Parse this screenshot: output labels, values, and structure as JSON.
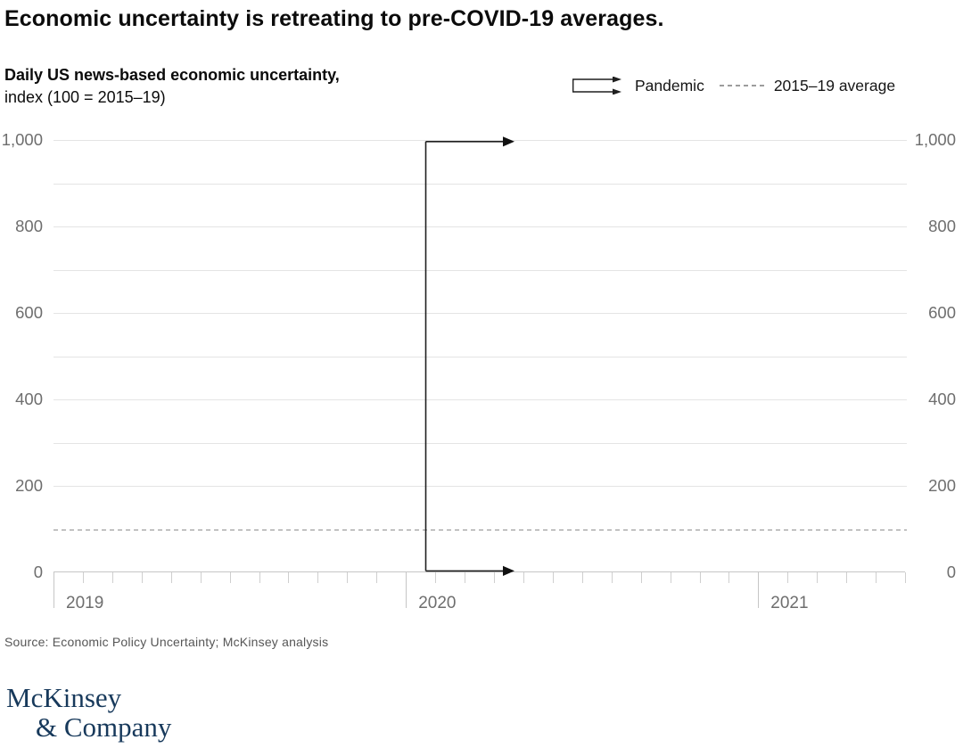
{
  "title": "Economic uncertainty is retreating to pre-COVID-19 averages.",
  "subtitle": {
    "bold": "Daily US news-based economic uncertainty,",
    "regular": " index (100 = 2015–19)"
  },
  "legend": {
    "pandemic_label": "Pandemic",
    "average_label": "2015–19 average"
  },
  "y_axis": {
    "tick_labels": [
      "1,000",
      "800",
      "600",
      "400",
      "200",
      "0"
    ],
    "tick_values": [
      1000,
      800,
      600,
      400,
      200,
      0
    ]
  },
  "x_axis": {
    "years": [
      "2019",
      "2020",
      "2021"
    ],
    "minor_tick_count": 30,
    "major_tick_every": 12
  },
  "source": "Source: Economic Policy Uncertainty; McKinsey analysis",
  "logo": {
    "line1": "McKinsey",
    "line2": "& Company"
  },
  "colors": {
    "text_dark": "#0b0b0b",
    "tick_label_gray": "#6e6e6e",
    "gridline_gray": "#e4e4e4",
    "axis_gray": "#c6c6c6",
    "average_line_gray": "#8f8f8f",
    "marker_black": "#1f1f1f",
    "logo_navy": "#17395b"
  },
  "chart_data": {
    "type": "line",
    "title": "Economic uncertainty is retreating to pre-COVID-19 averages.",
    "subtitle": "Daily US news-based economic uncertainty, index (100 = 2015–19)",
    "ylim": [
      0,
      1000
    ],
    "gridline_step": 100,
    "labeled_y_ticks": [
      0,
      200,
      400,
      600,
      800,
      1000
    ],
    "x_range": [
      "Jan 2019",
      "Jun 2021"
    ],
    "x_tick_labels": [
      "2019",
      "2020",
      "2021"
    ],
    "x_minor_ticks": "monthly",
    "dual_y_axis": true,
    "grid": true,
    "legend_position": "top-right",
    "series": [],
    "annotations": [
      {
        "type": "vertical-line-double-arrow",
        "label": "Pandemic",
        "x": "early 2020",
        "arrows_point_to": "Apr 2020",
        "y_span": [
          0,
          1000
        ]
      },
      {
        "type": "dashed-horizontal-line",
        "label": "2015–19 average",
        "y": 100
      }
    ]
  }
}
